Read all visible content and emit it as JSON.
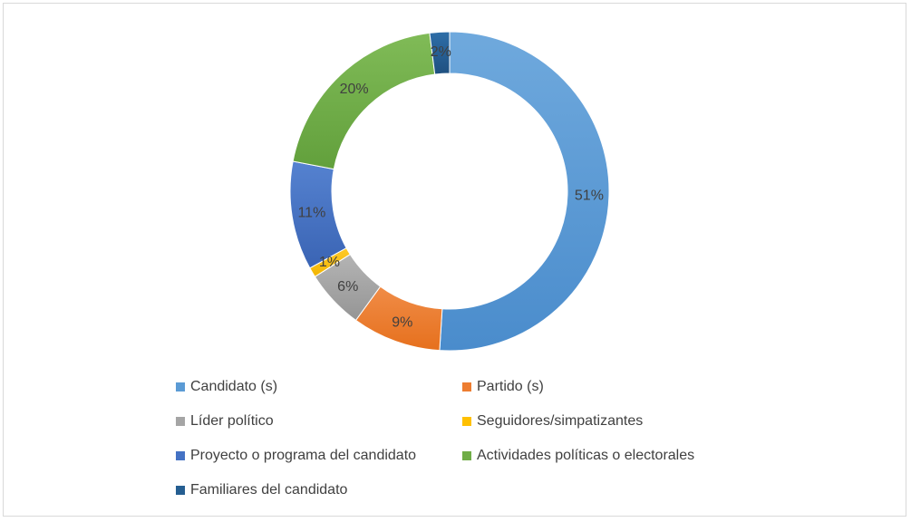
{
  "chart_data": {
    "type": "pie",
    "variant": "donut",
    "title": "",
    "legend_position": "bottom",
    "slices": [
      {
        "label": "Candidato (s)",
        "value": 51,
        "value_label": "51%",
        "color": "#5b9bd5"
      },
      {
        "label": "Partido (s)",
        "value": 9,
        "value_label": "9%",
        "color": "#ed7d31"
      },
      {
        "label": "Líder político",
        "value": 6,
        "value_label": "6%",
        "color": "#a5a5a5"
      },
      {
        "label": "Seguidores/simpatizantes",
        "value": 1,
        "value_label": "1%",
        "color": "#ffc000"
      },
      {
        "label": "Proyecto o programa del candidato",
        "value": 11,
        "value_label": "11%",
        "color": "#4472c4"
      },
      {
        "label": "Actividades políticas o electorales",
        "value": 20,
        "value_label": "20%",
        "color": "#70ad47"
      },
      {
        "label": "Familiares del candidato",
        "value": 2,
        "value_label": "2%",
        "color": "#255e91"
      }
    ]
  }
}
